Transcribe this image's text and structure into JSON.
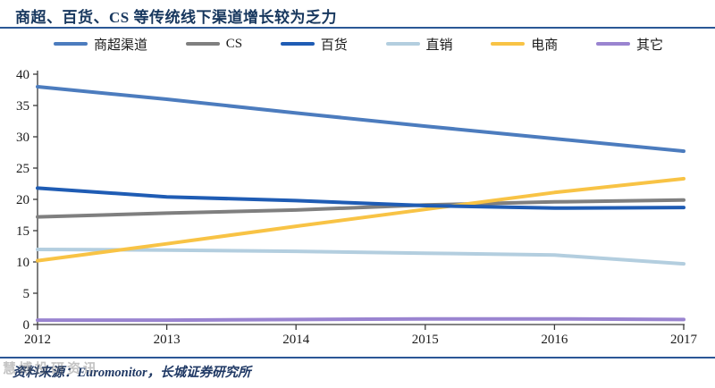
{
  "title": "商超、百货、CS 等传统线下渠道增长较为乏力",
  "source": "资料来源：Euromonitor，长城证券研究所",
  "watermark": "慧博投研资讯",
  "accent_color": "#17375E",
  "chart_data": {
    "type": "line",
    "title": "商超、百货、CS 等传统线下渠道增长较为乏力",
    "xlabel": "",
    "ylabel": "",
    "categories": [
      "2012",
      "2013",
      "2014",
      "2015",
      "2016",
      "2017"
    ],
    "ylim": [
      0,
      40
    ],
    "y_ticks": [
      0,
      5,
      10,
      15,
      20,
      25,
      30,
      35,
      40
    ],
    "grid": false,
    "legend_position": "top",
    "series": [
      {
        "name": "商超渠道",
        "color": "#4C7CBE",
        "values": [
          38.0,
          36.0,
          33.8,
          31.7,
          29.7,
          27.7
        ]
      },
      {
        "name": "CS",
        "color": "#7F7F7F",
        "values": [
          17.2,
          17.8,
          18.3,
          19.1,
          19.6,
          19.9
        ]
      },
      {
        "name": "百货",
        "color": "#1F5CB4",
        "values": [
          21.8,
          20.4,
          19.8,
          19.0,
          18.6,
          18.7
        ]
      },
      {
        "name": "直销",
        "color": "#B3CEDF",
        "values": [
          12.0,
          11.9,
          11.7,
          11.4,
          11.1,
          9.7
        ]
      },
      {
        "name": "电商",
        "color": "#F8C345",
        "values": [
          10.2,
          12.9,
          15.7,
          18.4,
          21.1,
          23.3
        ]
      },
      {
        "name": "其它",
        "color": "#9A84D0",
        "values": [
          0.7,
          0.7,
          0.8,
          0.9,
          0.9,
          0.8
        ]
      }
    ]
  }
}
